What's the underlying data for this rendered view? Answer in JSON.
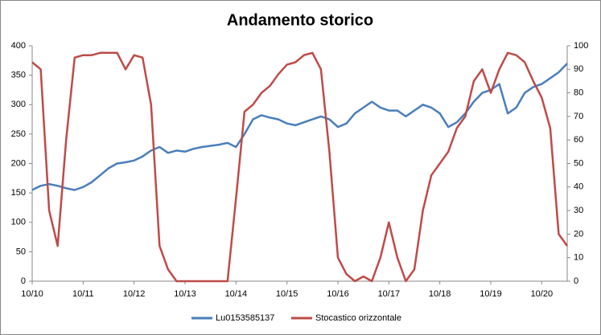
{
  "chart_data": {
    "type": "line",
    "title": "Andamento storico",
    "categories": [
      "10/10",
      null,
      null,
      null,
      null,
      null,
      "10/11",
      null,
      null,
      null,
      null,
      null,
      "10/12",
      null,
      null,
      null,
      null,
      null,
      "10/13",
      null,
      null,
      null,
      null,
      null,
      "10/14",
      null,
      null,
      null,
      null,
      null,
      "10/15",
      null,
      null,
      null,
      null,
      null,
      "10/16",
      null,
      null,
      null,
      null,
      null,
      "10/17",
      null,
      null,
      null,
      null,
      null,
      "10/18",
      null,
      null,
      null,
      null,
      null,
      "10/19",
      null,
      null,
      null,
      null,
      null,
      "10/20",
      null,
      null,
      null
    ],
    "series": [
      {
        "name": "Lu0153585137",
        "color": "#4a7ebb",
        "values": [
          155,
          162,
          165,
          162,
          158,
          155,
          160,
          168,
          180,
          192,
          200,
          202,
          205,
          212,
          222,
          228,
          218,
          222,
          220,
          225,
          228,
          230,
          232,
          235,
          228,
          250,
          275,
          282,
          278,
          275,
          268,
          265,
          270,
          275,
          280,
          275,
          262,
          268,
          285,
          295,
          305,
          295,
          290,
          290,
          280,
          290,
          300,
          295,
          285,
          262,
          270,
          285,
          305,
          320,
          325,
          335,
          285,
          295,
          320,
          330,
          335,
          345,
          355,
          370
        ]
      },
      {
        "name": "Stocastico orizzontale",
        "color": "#be4b48",
        "axis": "y2",
        "values": [
          93,
          90,
          30,
          15,
          60,
          95,
          96,
          96,
          97,
          97,
          97,
          90,
          96,
          95,
          75,
          15,
          5,
          0,
          0,
          0,
          0,
          0,
          0,
          0,
          35,
          72,
          75,
          80,
          83,
          88,
          92,
          93,
          96,
          97,
          90,
          55,
          10,
          3,
          0,
          2,
          0,
          10,
          25,
          10,
          0,
          5,
          30,
          45,
          50,
          55,
          65,
          70,
          85,
          90,
          80,
          90,
          97,
          96,
          93,
          85,
          78,
          65,
          20,
          15
        ]
      }
    ],
    "ylim": [
      0,
      400
    ],
    "yticks": [
      0,
      50,
      100,
      150,
      200,
      250,
      300,
      350,
      400
    ],
    "y2lim": [
      0,
      100
    ],
    "y2ticks": [
      0,
      10,
      20,
      30,
      40,
      50,
      60,
      70,
      80,
      90,
      100
    ],
    "grid": false,
    "legend": "bottom"
  }
}
